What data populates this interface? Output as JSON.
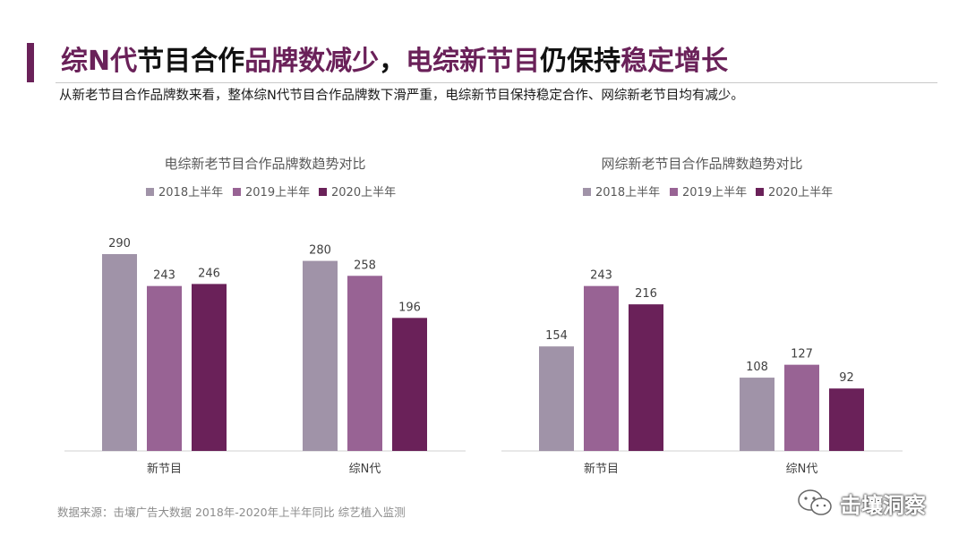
{
  "header": {
    "title_parts": [
      {
        "text": "综N代",
        "highlight": true
      },
      {
        "text": "节目合作",
        "highlight": false
      },
      {
        "text": "品牌数减少",
        "highlight": true
      },
      {
        "text": "，",
        "highlight": false
      },
      {
        "text": "电综新节目",
        "highlight": true
      },
      {
        "text": "仍保持",
        "highlight": false
      },
      {
        "text": "稳定增长",
        "highlight": true
      }
    ],
    "subtitle": "从新老节目合作品牌数来看，整体综N代节目合作品牌数下滑严重，电综新节目保持稳定合作、网综新老节目均有减少。"
  },
  "colors": {
    "accent": "#6a2159",
    "series": [
      "#a093a8",
      "#986394",
      "#6a2159"
    ]
  },
  "chart_data": [
    {
      "type": "bar",
      "title": "电综新老节目合作品牌数趋势对比",
      "categories": [
        "新节目",
        "综N代"
      ],
      "legend_position": "top",
      "series": [
        {
          "name": "2018上半年",
          "values": [
            290,
            280
          ]
        },
        {
          "name": "2019上半年",
          "values": [
            243,
            258
          ]
        },
        {
          "name": "2020上半年",
          "values": [
            246,
            196
          ]
        }
      ]
    },
    {
      "type": "bar",
      "title": "网综新老节目合作品牌数趋势对比",
      "categories": [
        "新节目",
        "综N代"
      ],
      "legend_position": "top",
      "series": [
        {
          "name": "2018上半年",
          "values": [
            154,
            108
          ]
        },
        {
          "name": "2019上半年",
          "values": [
            243,
            127
          ]
        },
        {
          "name": "2020上半年",
          "values": [
            216,
            92
          ]
        }
      ]
    }
  ],
  "footer": {
    "source": "数据来源：击壤广告大数据 2018年-2020年上半年同比 综艺植入监测",
    "brand_name": "击壤洞察",
    "brand_icon": "wechat-icon"
  }
}
